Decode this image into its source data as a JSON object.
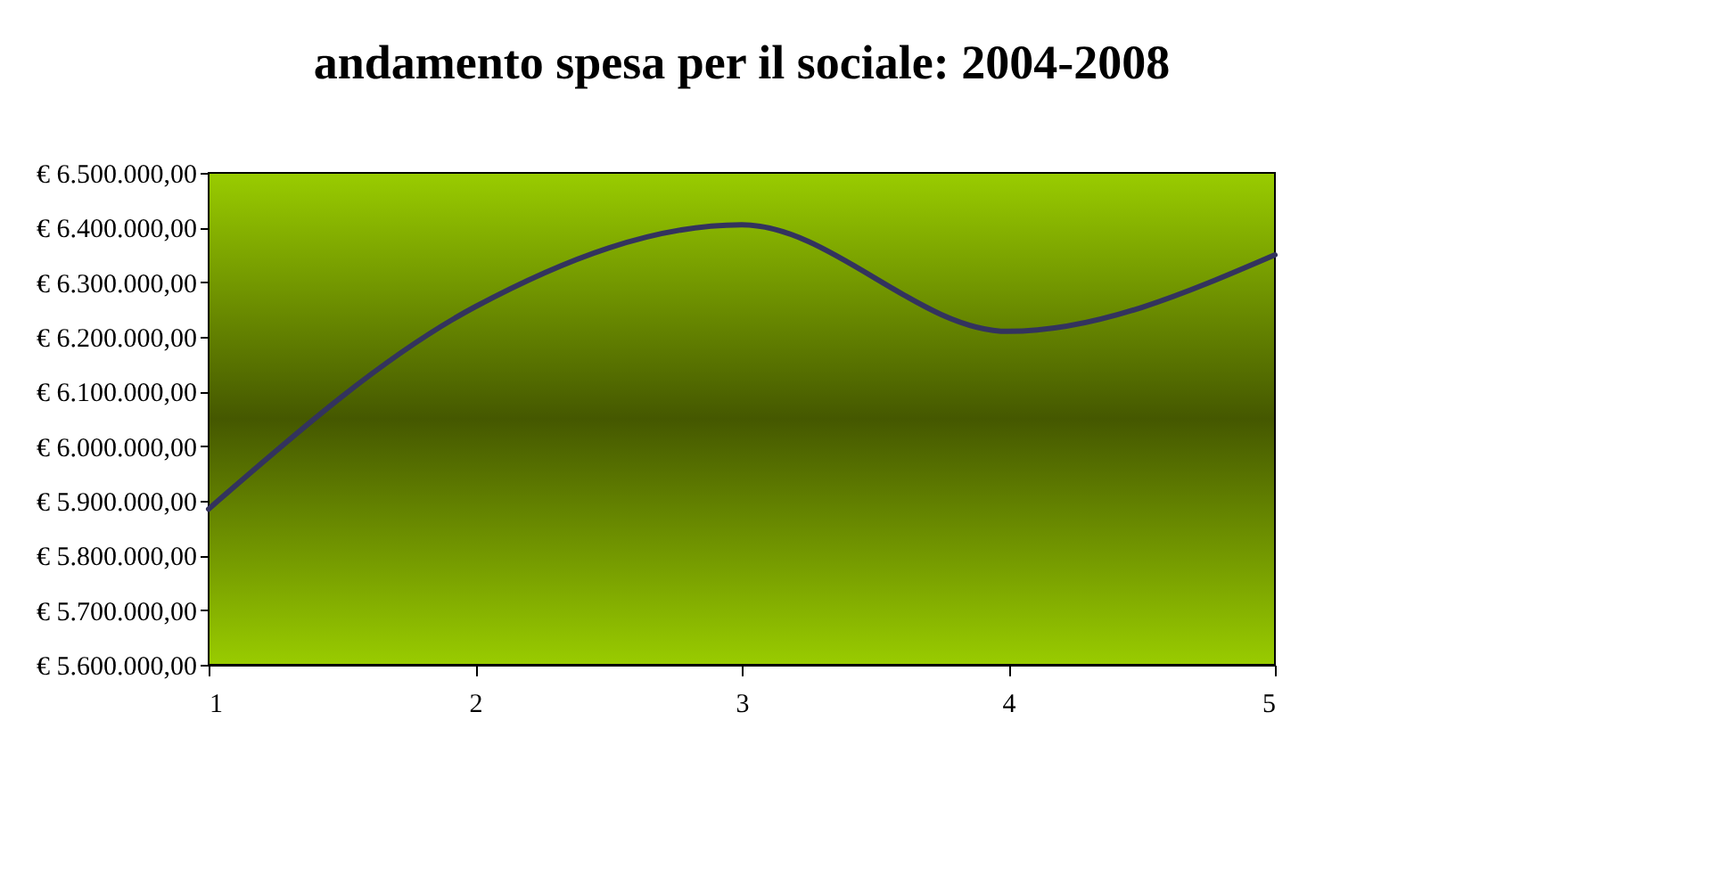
{
  "chart_data": {
    "type": "line",
    "title": "andamento spesa per il sociale: 2004-2008",
    "x": [
      1,
      2,
      3,
      4,
      5
    ],
    "series": [
      {
        "color": "#33335e",
        "values": [
          5885000,
          6255000,
          6405000,
          6210000,
          6350000
        ]
      }
    ],
    "xlim": [
      1,
      5
    ],
    "xticks": [
      1,
      2,
      3,
      4,
      5
    ],
    "ylim": [
      5600000,
      6500000
    ],
    "yticks": [
      {
        "value": 5600000,
        "label": "€ 5.600.000,00"
      },
      {
        "value": 5700000,
        "label": "€ 5.700.000,00"
      },
      {
        "value": 5800000,
        "label": "€ 5.800.000,00"
      },
      {
        "value": 5900000,
        "label": "€ 5.900.000,00"
      },
      {
        "value": 6000000,
        "label": "€ 6.000.000,00"
      },
      {
        "value": 6100000,
        "label": "€ 6.100.000,00"
      },
      {
        "value": 6200000,
        "label": "€ 6.200.000,00"
      },
      {
        "value": 6300000,
        "label": "€ 6.300.000,00"
      },
      {
        "value": 6400000,
        "label": "€ 6.400.000,00"
      },
      {
        "value": 6500000,
        "label": "€ 6.500.000,00"
      }
    ],
    "grid": false,
    "marker": "none",
    "line_style": "solid"
  }
}
